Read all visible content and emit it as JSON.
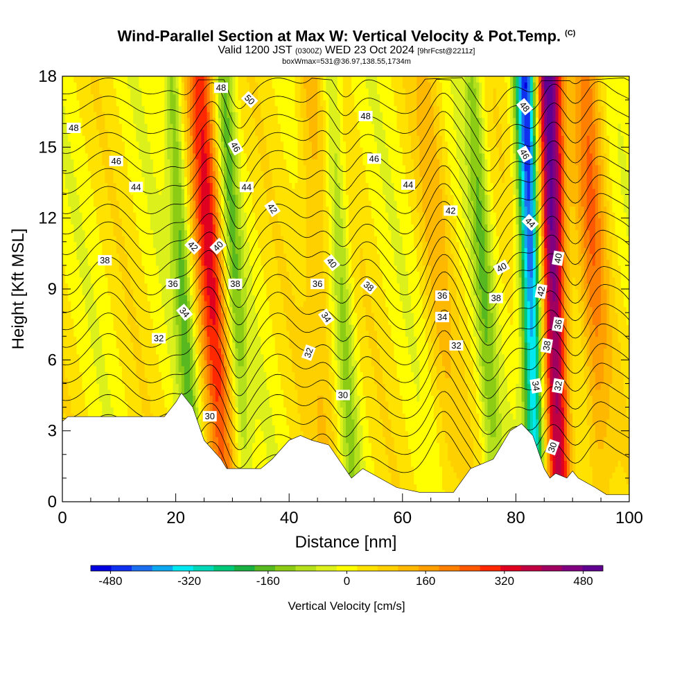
{
  "title": "Wind-Parallel Section at Max W: Vertical Velocity & Pot.Temp.",
  "copyright": "(C)",
  "subtitle_main": "Valid 1200 JST",
  "subtitle_utc": "(0300Z)",
  "subtitle_date": "WED 23 Oct 2024",
  "subtitle_fcst": "[9hrFcst@2211z]",
  "subtitle_box": "boxWmax=531@36.97,138.55,1734m",
  "chart_data": {
    "type": "heatmap",
    "xlabel": "Distance [nm]",
    "ylabel": "Height [Kft MSL]",
    "xlim": [
      0,
      100
    ],
    "ylim": [
      0,
      18
    ],
    "xticks": [
      "0",
      "20",
      "40",
      "60",
      "80",
      "100"
    ],
    "yticks": [
      "0",
      "3",
      "6",
      "9",
      "12",
      "15",
      "18"
    ],
    "colorbar": {
      "label": "Vertical Velocity [cm/s]",
      "range": [
        -520,
        520
      ],
      "tick_labels": [
        "-480",
        "-320",
        "-160",
        "0",
        "160",
        "320",
        "480"
      ],
      "colors": [
        "#0000e0",
        "#1030f0",
        "#1c6ef0",
        "#0ea8f0",
        "#00e8f0",
        "#00d8b8",
        "#00c878",
        "#18b040",
        "#58b820",
        "#8ccc14",
        "#b4e01c",
        "#dcf01c",
        "#ffff00",
        "#ffe200",
        "#ffd000",
        "#ffb800",
        "#ffa000",
        "#ff8000",
        "#ff5800",
        "#ff2800",
        "#e00020",
        "#c00040",
        "#a00060",
        "#800080",
        "#600090"
      ]
    },
    "updraft_bands": [
      {
        "x": 27,
        "w": 300
      },
      {
        "x": 46,
        "w": 120
      },
      {
        "x": 67,
        "w": 80
      },
      {
        "x": 87,
        "w": 520
      },
      {
        "x": 94,
        "w": 180
      }
    ],
    "downdraft_bands": [
      {
        "x": 22,
        "w": -180
      },
      {
        "x": 31,
        "w": -160
      },
      {
        "x": 50,
        "w": -130
      },
      {
        "x": 75,
        "w": -140
      },
      {
        "x": 83,
        "w": -480
      }
    ],
    "terrain": [
      {
        "x": 0,
        "h": 3.4
      },
      {
        "x": 1,
        "h": 3.6
      },
      {
        "x": 18,
        "h": 3.6
      },
      {
        "x": 20,
        "h": 4.2
      },
      {
        "x": 21,
        "h": 4.6
      },
      {
        "x": 23,
        "h": 4.0
      },
      {
        "x": 25,
        "h": 2.6
      },
      {
        "x": 28,
        "h": 1.8
      },
      {
        "x": 29,
        "h": 1.4
      },
      {
        "x": 35,
        "h": 1.4
      },
      {
        "x": 37,
        "h": 1.8
      },
      {
        "x": 40,
        "h": 2.6
      },
      {
        "x": 42,
        "h": 2.8
      },
      {
        "x": 44,
        "h": 2.6
      },
      {
        "x": 47,
        "h": 2.4
      },
      {
        "x": 51,
        "h": 1.0
      },
      {
        "x": 53,
        "h": 1.4
      },
      {
        "x": 56,
        "h": 1.0
      },
      {
        "x": 59,
        "h": 0.6
      },
      {
        "x": 63,
        "h": 0.4
      },
      {
        "x": 69,
        "h": 0.4
      },
      {
        "x": 72,
        "h": 1.4
      },
      {
        "x": 76,
        "h": 1.8
      },
      {
        "x": 79,
        "h": 3.0
      },
      {
        "x": 81,
        "h": 3.3
      },
      {
        "x": 83,
        "h": 2.8
      },
      {
        "x": 85,
        "h": 1.4
      },
      {
        "x": 86,
        "h": 1.0
      },
      {
        "x": 87,
        "h": 1.2
      },
      {
        "x": 89,
        "h": 1.0
      },
      {
        "x": 90,
        "h": 1.3
      },
      {
        "x": 91,
        "h": 1.0
      },
      {
        "x": 94,
        "h": 0.6
      },
      {
        "x": 96,
        "h": 0.3
      },
      {
        "x": 100,
        "h": 0.3
      }
    ],
    "theta_levels": [
      30,
      31,
      32,
      33,
      34,
      35,
      36,
      37,
      38,
      39,
      40,
      41,
      42,
      43,
      44,
      45,
      46,
      47,
      48,
      49,
      50
    ],
    "theta_labels": [
      {
        "text": "48",
        "x": 2,
        "y": 15.8,
        "rot": 0
      },
      {
        "text": "46",
        "x": 9.5,
        "y": 14.4,
        "rot": 0
      },
      {
        "text": "44",
        "x": 13,
        "y": 13.3,
        "rot": 0
      },
      {
        "text": "38",
        "x": 7.5,
        "y": 10.2,
        "rot": 0
      },
      {
        "text": "32",
        "x": 17,
        "y": 6.9,
        "rot": 0
      },
      {
        "text": "48",
        "x": 28,
        "y": 17.5,
        "rot": 0
      },
      {
        "text": "50",
        "x": 33,
        "y": 17.0,
        "rot": 45
      },
      {
        "text": "46",
        "x": 30.5,
        "y": 15.0,
        "rot": 60
      },
      {
        "text": "44",
        "x": 32.5,
        "y": 13.3,
        "rot": 0
      },
      {
        "text": "42",
        "x": 37,
        "y": 12.4,
        "rot": 55
      },
      {
        "text": "42",
        "x": 23,
        "y": 10.8,
        "rot": 45
      },
      {
        "text": "40",
        "x": 27.5,
        "y": 10.8,
        "rot": -45
      },
      {
        "text": "36",
        "x": 19.5,
        "y": 9.2,
        "rot": 0
      },
      {
        "text": "38",
        "x": 30.5,
        "y": 9.2,
        "rot": 0
      },
      {
        "text": "34",
        "x": 21.5,
        "y": 8.0,
        "rot": 50
      },
      {
        "text": "30",
        "x": 26,
        "y": 3.6,
        "rot": 0
      },
      {
        "text": "48",
        "x": 53.5,
        "y": 16.3,
        "rot": 0
      },
      {
        "text": "46",
        "x": 55,
        "y": 14.5,
        "rot": 0
      },
      {
        "text": "44",
        "x": 61,
        "y": 13.4,
        "rot": 0
      },
      {
        "text": "42",
        "x": 68.5,
        "y": 12.3,
        "rot": 0
      },
      {
        "text": "40",
        "x": 47.5,
        "y": 10.1,
        "rot": 50
      },
      {
        "text": "36",
        "x": 45,
        "y": 9.2,
        "rot": 0
      },
      {
        "text": "38",
        "x": 54,
        "y": 9.1,
        "rot": 40
      },
      {
        "text": "34",
        "x": 46.5,
        "y": 7.8,
        "rot": 55
      },
      {
        "text": "32",
        "x": 43.5,
        "y": 6.3,
        "rot": -70
      },
      {
        "text": "30",
        "x": 49.5,
        "y": 4.5,
        "rot": 0
      },
      {
        "text": "36",
        "x": 67,
        "y": 8.7,
        "rot": 0
      },
      {
        "text": "34",
        "x": 67,
        "y": 7.8,
        "rot": 0
      },
      {
        "text": "32",
        "x": 69.5,
        "y": 6.6,
        "rot": 0
      },
      {
        "text": "38",
        "x": 76.5,
        "y": 8.6,
        "rot": 0
      },
      {
        "text": "40",
        "x": 77.5,
        "y": 9.9,
        "rot": -30
      },
      {
        "text": "48",
        "x": 81.5,
        "y": 16.7,
        "rot": 50
      },
      {
        "text": "46",
        "x": 81.5,
        "y": 14.7,
        "rot": 60
      },
      {
        "text": "44",
        "x": 82.5,
        "y": 11.8,
        "rot": 45
      },
      {
        "text": "40",
        "x": 87.5,
        "y": 10.3,
        "rot": -80
      },
      {
        "text": "42",
        "x": 84.5,
        "y": 8.9,
        "rot": -80
      },
      {
        "text": "36",
        "x": 87.5,
        "y": 7.5,
        "rot": -80
      },
      {
        "text": "38",
        "x": 85.5,
        "y": 6.6,
        "rot": -80
      },
      {
        "text": "32",
        "x": 87.5,
        "y": 4.9,
        "rot": -80
      },
      {
        "text": "34",
        "x": 83.5,
        "y": 4.9,
        "rot": 80
      },
      {
        "text": "30",
        "x": 86.5,
        "y": 2.3,
        "rot": -70
      }
    ]
  }
}
